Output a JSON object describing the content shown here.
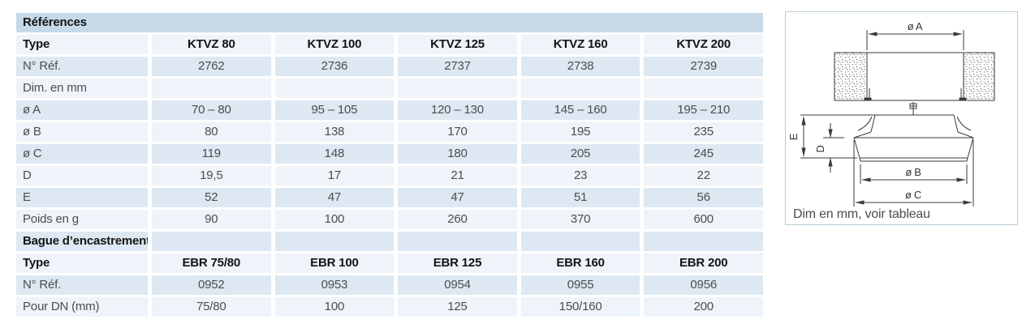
{
  "colors": {
    "section_bar_bg": "#c6d9e9",
    "stripe_blue_bg": "#dde8f2",
    "stripe_light_bg": "#eef4f9",
    "text_dark_gray": "#4d4d4d",
    "text_black": "#141414",
    "diagram_border": "#b7cbd5",
    "drawing_stroke": "#3a3a3a"
  },
  "table": {
    "rows": [
      {
        "variant": "bar",
        "bold": true,
        "span": true,
        "label": "Références",
        "cells": [
          "",
          "",
          "",
          "",
          ""
        ]
      },
      {
        "variant": "light",
        "bold": true,
        "span": false,
        "label": "Type",
        "cells": [
          "KTVZ 80",
          "KTVZ 100",
          "KTVZ 125",
          "KTVZ 160",
          "KTVZ 200"
        ]
      },
      {
        "variant": "blue",
        "bold": false,
        "span": false,
        "label": "N° Réf.",
        "cells": [
          "2762",
          "2736",
          "2737",
          "2738",
          "2739"
        ]
      },
      {
        "variant": "light",
        "bold": false,
        "span": false,
        "label": "Dim. en mm",
        "cells": [
          "",
          "",
          "",
          "",
          ""
        ]
      },
      {
        "variant": "blue",
        "bold": false,
        "span": false,
        "label": "ø A",
        "cells": [
          "70 – 80",
          "95 – 105",
          "120 – 130",
          "145 – 160",
          "195 – 210"
        ]
      },
      {
        "variant": "light",
        "bold": false,
        "span": false,
        "label": "ø B",
        "cells": [
          "80",
          "138",
          "170",
          "195",
          "235"
        ]
      },
      {
        "variant": "blue",
        "bold": false,
        "span": false,
        "label": "ø C",
        "cells": [
          "119",
          "148",
          "180",
          "205",
          "245"
        ]
      },
      {
        "variant": "light",
        "bold": false,
        "span": false,
        "label": "D",
        "cells": [
          "19,5",
          "17",
          "21",
          "23",
          "22"
        ]
      },
      {
        "variant": "blue",
        "bold": false,
        "span": false,
        "label": "E",
        "cells": [
          "52",
          "47",
          "47",
          "51",
          "56"
        ]
      },
      {
        "variant": "light",
        "bold": false,
        "span": false,
        "label": "Poids en g",
        "cells": [
          "90",
          "100",
          "260",
          "370",
          "600"
        ]
      },
      {
        "variant": "blue",
        "bold": true,
        "span": false,
        "label": "Bague d’encastrement",
        "cells": [
          "",
          "",
          "",
          "",
          ""
        ]
      },
      {
        "variant": "light",
        "bold": true,
        "span": false,
        "label": "Type",
        "cells": [
          "EBR 75/80",
          "EBR 100",
          "EBR 125",
          "EBR 160",
          "EBR 200"
        ]
      },
      {
        "variant": "blue",
        "bold": false,
        "span": false,
        "label": "N° Réf.",
        "cells": [
          "0952",
          "0953",
          "0954",
          "0955",
          "0956"
        ]
      },
      {
        "variant": "light",
        "bold": false,
        "span": false,
        "label": "Pour DN (mm)",
        "cells": [
          "75/80",
          "100",
          "125",
          "150/160",
          "200"
        ]
      }
    ]
  },
  "diagram": {
    "caption": "Dim en mm, voir tableau",
    "dim_a": "ø A",
    "dim_b": "ø B",
    "dim_c": "ø C",
    "dim_d": "D",
    "dim_e": "E"
  }
}
